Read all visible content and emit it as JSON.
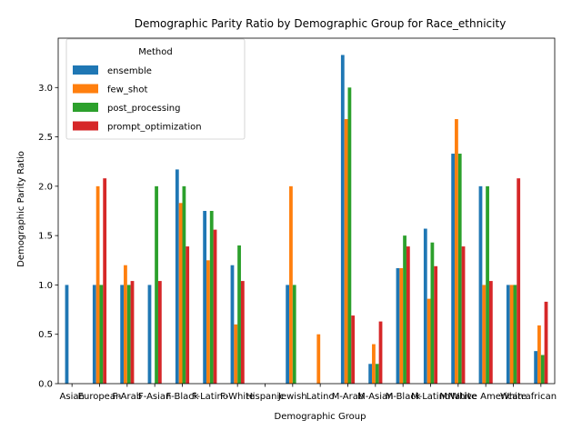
{
  "chart_data": {
    "type": "bar",
    "title": "Demographic Parity Ratio by Demographic Group for Race_ethnicity",
    "xlabel": "Demographic Group",
    "ylabel": "Demographic Parity Ratio",
    "ylim": [
      0,
      3.5
    ],
    "yticks": [
      "0.0",
      "0.5",
      "1.0",
      "1.5",
      "2.0",
      "2.5",
      "3.0"
    ],
    "grid": false,
    "legend": {
      "title": "Method",
      "position": "top-left"
    },
    "categories": [
      "Asian",
      "European",
      "F-Arab",
      "F-Asian",
      "F-Black",
      "F-Latino",
      "F-White",
      "Hispanic",
      "Jewish",
      "Latino",
      "M-Arab",
      "M-Asian",
      "M-Black",
      "M-Latino",
      "M-White",
      "Native American",
      "White",
      "african"
    ],
    "series": [
      {
        "name": "ensemble",
        "color": "#1f77b4",
        "values": [
          1.0,
          1.0,
          1.0,
          1.0,
          2.17,
          1.75,
          1.2,
          0,
          1.0,
          0,
          3.33,
          0.2,
          1.17,
          1.57,
          2.33,
          2.0,
          1.0,
          0.33
        ]
      },
      {
        "name": "few_shot",
        "color": "#ff7f0e",
        "values": [
          0,
          2.0,
          1.2,
          0,
          1.83,
          1.25,
          0.6,
          0,
          2.0,
          0.5,
          2.68,
          0.4,
          1.17,
          0.86,
          2.68,
          1.0,
          1.0,
          0.59
        ]
      },
      {
        "name": "post_processing",
        "color": "#2ca02c",
        "values": [
          0,
          1.0,
          1.0,
          2.0,
          2.0,
          1.75,
          1.4,
          0,
          1.0,
          0,
          3.0,
          0.2,
          1.5,
          1.43,
          2.33,
          2.0,
          1.0,
          0.29
        ]
      },
      {
        "name": "prompt_optimization",
        "color": "#d62728",
        "values": [
          0,
          2.08,
          1.04,
          1.04,
          1.39,
          1.56,
          1.04,
          0,
          0,
          0,
          0.69,
          0.63,
          1.39,
          1.19,
          1.39,
          1.04,
          2.08,
          0.83
        ]
      }
    ]
  }
}
